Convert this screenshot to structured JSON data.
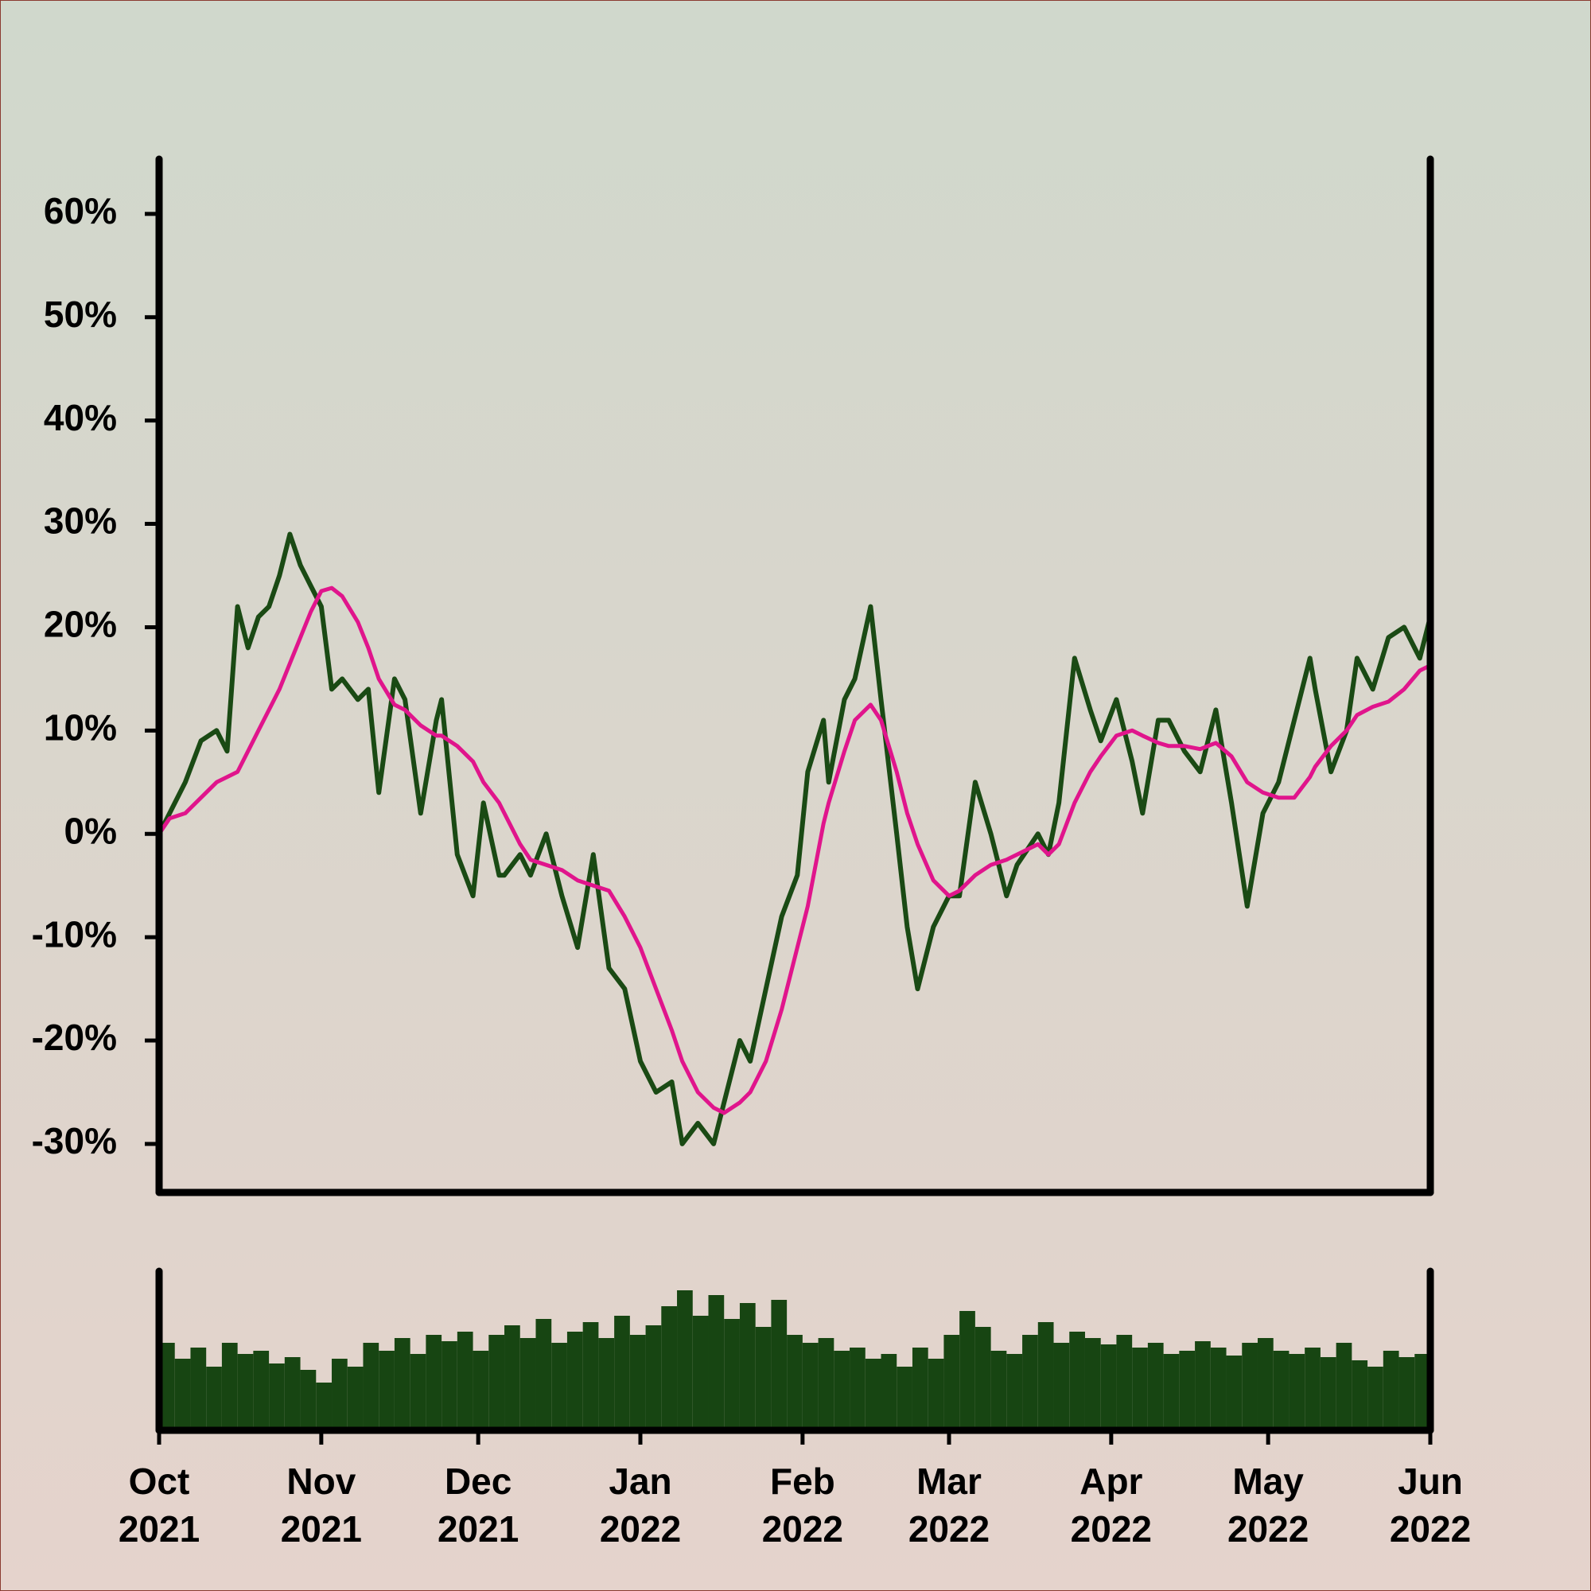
{
  "chart_data": [
    {
      "type": "line",
      "x": [
        0,
        2,
        5,
        8,
        11,
        13,
        15,
        17,
        19,
        21,
        23,
        25,
        27,
        29,
        31,
        33,
        35,
        38,
        40,
        42,
        45,
        47,
        50,
        53,
        54,
        57,
        60,
        62,
        65,
        66,
        69,
        71,
        74,
        77,
        80,
        83,
        86,
        89,
        92,
        95,
        98,
        100,
        103,
        106,
        108,
        111,
        113,
        116,
        119,
        122,
        124,
        127,
        128,
        131,
        133,
        136,
        138,
        141,
        143,
        145,
        148,
        151,
        153,
        156,
        159,
        162,
        164,
        168,
        170,
        172,
        175,
        178,
        180,
        183,
        186,
        188,
        191,
        193,
        196,
        199,
        202,
        205,
        208,
        211,
        214,
        217,
        220,
        221,
        224,
        227,
        229,
        232,
        235,
        238,
        241,
        243
      ],
      "series": [
        {
          "color": "#1a4a14",
          "values": [
            0,
            2,
            5,
            9,
            10,
            8,
            22,
            18,
            21,
            22,
            25,
            29,
            26,
            24,
            22,
            14,
            15,
            13,
            14,
            4,
            15,
            13,
            2,
            11,
            13,
            -2,
            -6,
            3,
            -4,
            -4,
            -2,
            -4,
            0,
            -6,
            -11,
            -2,
            -13,
            -15,
            -22,
            -25,
            -24,
            -30,
            -28,
            -30,
            -26,
            -20,
            -22,
            -15,
            -8,
            -4,
            6,
            11,
            5,
            13,
            15,
            22,
            13,
            0,
            -9,
            -15,
            -9,
            -6,
            -6,
            5,
            0,
            -6,
            -3,
            0,
            -2,
            3,
            17,
            12,
            9,
            13,
            7,
            2,
            11,
            11,
            8,
            6,
            12,
            3,
            -7,
            2,
            5,
            11,
            17,
            14,
            6,
            10,
            17,
            14,
            19,
            20,
            17,
            21
          ]
        },
        {
          "color": "#e0158c",
          "values": [
            0,
            1.5,
            2,
            3.5,
            5,
            5.5,
            6,
            8,
            10,
            12,
            14,
            16.5,
            19,
            21.5,
            23.5,
            23.8,
            23,
            20.5,
            18,
            15,
            12.5,
            12,
            10.5,
            9.5,
            9.5,
            8.5,
            7,
            5,
            3,
            2,
            -1,
            -2.5,
            -3,
            -3.5,
            -4.5,
            -5,
            -5.5,
            -8,
            -11,
            -15,
            -19,
            -22,
            -25,
            -26.5,
            -27,
            -26,
            -25,
            -22,
            -17,
            -11,
            -7,
            1,
            3,
            8,
            11,
            12.5,
            11,
            6,
            2,
            -1,
            -4.5,
            -6,
            -5.5,
            -4,
            -3,
            -2.5,
            -2,
            -1,
            -2,
            -1,
            3,
            6,
            7.5,
            9.5,
            10,
            9.5,
            8.8,
            8.5,
            8.5,
            8.2,
            8.8,
            7.5,
            5,
            4,
            3.5,
            3.5,
            5.5,
            6.5,
            8.5,
            10,
            11.5,
            12.3,
            12.8,
            14,
            15.8,
            16.3
          ]
        }
      ],
      "xlim": [
        0,
        243
      ],
      "ylim": [
        -34.7,
        65.3
      ],
      "yticks": [
        {
          "value": -30,
          "label": "-30%"
        },
        {
          "value": -20,
          "label": "-20%"
        },
        {
          "value": -10,
          "label": "-10%"
        },
        {
          "value": 0,
          "label": "0%"
        },
        {
          "value": 10,
          "label": "10%"
        },
        {
          "value": 20,
          "label": "20%"
        },
        {
          "value": 30,
          "label": "30%"
        },
        {
          "value": 40,
          "label": "40%"
        },
        {
          "value": 50,
          "label": "50%"
        },
        {
          "value": 60,
          "label": "60%"
        }
      ]
    },
    {
      "type": "bar",
      "color": "#174512",
      "x": [
        0,
        3,
        6,
        9,
        12,
        15,
        18,
        21,
        24,
        27,
        30,
        33,
        36,
        39,
        42,
        45,
        48,
        51,
        54,
        57,
        60,
        63,
        66,
        69,
        72,
        75,
        78,
        81,
        84,
        87,
        90,
        93,
        96,
        99,
        102,
        105,
        108,
        111,
        114,
        117,
        120,
        123,
        126,
        129,
        132,
        135,
        138,
        141,
        144,
        147,
        150,
        153,
        156,
        159,
        162,
        165,
        168,
        171,
        174,
        177,
        180,
        183,
        186,
        189,
        192,
        195,
        198,
        201,
        204,
        207,
        210,
        213,
        216,
        219,
        222,
        225,
        228,
        231,
        234,
        237,
        240
      ],
      "values": [
        55,
        45,
        52,
        40,
        55,
        48,
        50,
        42,
        46,
        38,
        30,
        45,
        40,
        55,
        50,
        58,
        48,
        60,
        56,
        62,
        50,
        60,
        66,
        58,
        70,
        55,
        62,
        68,
        58,
        72,
        60,
        66,
        78,
        88,
        72,
        85,
        70,
        80,
        65,
        82,
        60,
        55,
        58,
        50,
        52,
        45,
        48,
        40,
        52,
        45,
        60,
        75,
        65,
        50,
        48,
        60,
        68,
        55,
        62,
        58,
        54,
        60,
        52,
        55,
        48,
        50,
        56,
        52,
        47,
        55,
        58,
        50,
        48,
        52,
        46,
        55,
        44,
        40,
        50,
        46,
        48
      ],
      "xlim": [
        0,
        243
      ],
      "ylim": [
        0,
        100
      ],
      "xticks": [
        {
          "value": 0,
          "label": "Oct 2021"
        },
        {
          "value": 31,
          "label": "Nov 2021"
        },
        {
          "value": 61,
          "label": "Dec 2021"
        },
        {
          "value": 92,
          "label": "Jan 2022"
        },
        {
          "value": 123,
          "label": "Feb 2022"
        },
        {
          "value": 151,
          "label": "Mar 2022"
        },
        {
          "value": 182,
          "label": "Apr 2022"
        },
        {
          "value": 212,
          "label": "May 2022"
        },
        {
          "value": 243,
          "label": "Jun 2022"
        }
      ]
    }
  ]
}
